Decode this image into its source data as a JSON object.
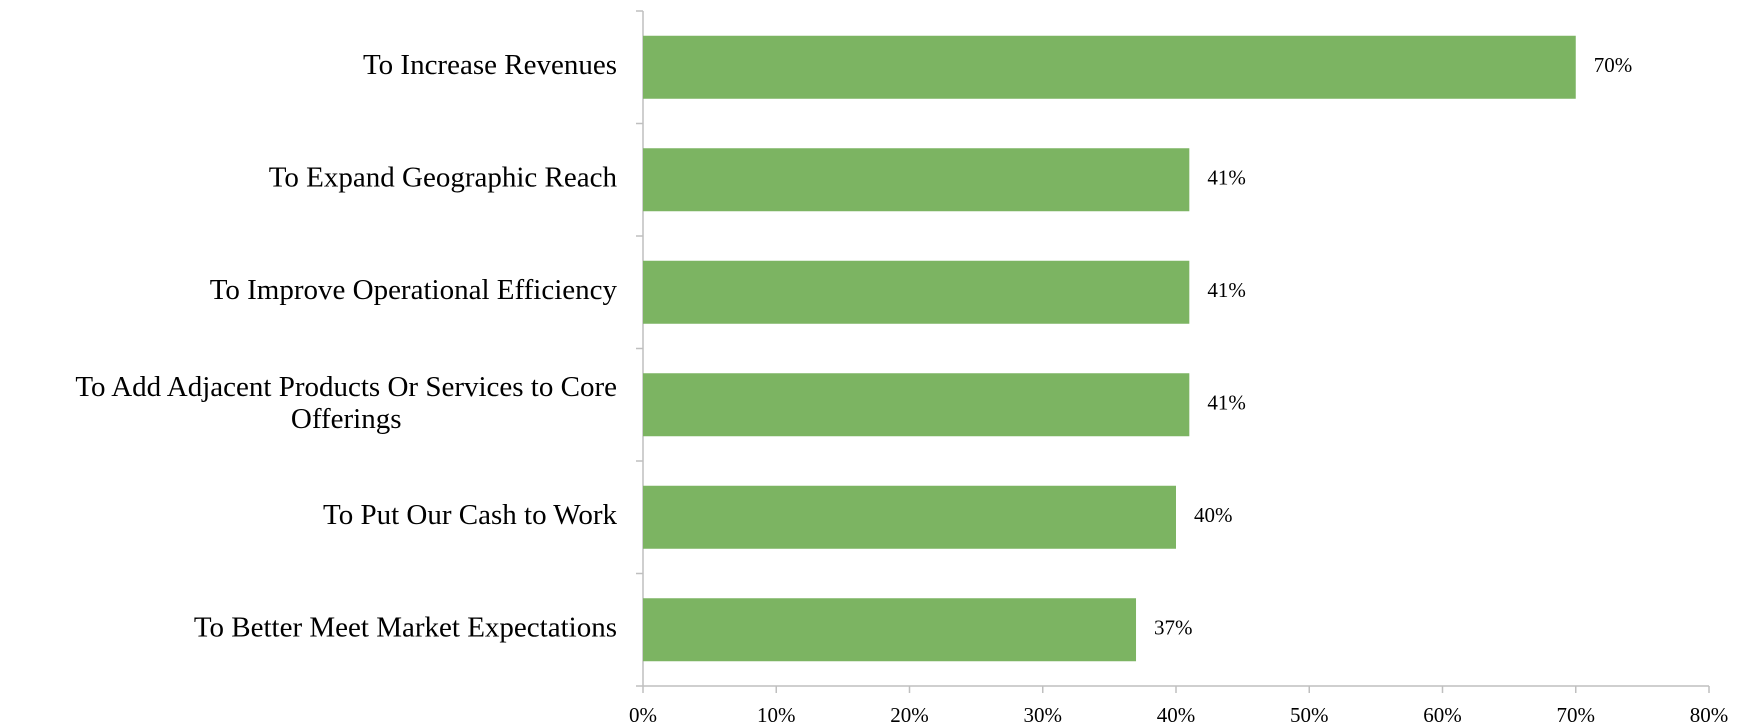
{
  "chart_data": {
    "type": "hbar",
    "categories": [
      "To Increase Revenues",
      "To Expand Geographic Reach",
      "To Improve Operational Efficiency",
      "To Add Adjacent Products Or Services to Core Offerings",
      "To Put Our Cash to Work",
      "To Better Meet Market Expectations"
    ],
    "values": [
      70,
      41,
      41,
      41,
      40,
      37
    ],
    "value_labels": [
      "70%",
      "41%",
      "41%",
      "41%",
      "40%",
      "37%"
    ],
    "color": "#7cb462",
    "xlim": [
      0,
      80
    ],
    "xticks": [
      {
        "value": 0,
        "label": "0%"
      },
      {
        "value": 10,
        "label": "10%"
      },
      {
        "value": 20,
        "label": "20%"
      },
      {
        "value": 30,
        "label": "30%"
      },
      {
        "value": 40,
        "label": "40%"
      },
      {
        "value": 50,
        "label": "50%"
      },
      {
        "value": 60,
        "label": "60%"
      },
      {
        "value": 70,
        "label": "70%"
      },
      {
        "value": 80,
        "label": "80%"
      }
    ],
    "grid": false
  }
}
